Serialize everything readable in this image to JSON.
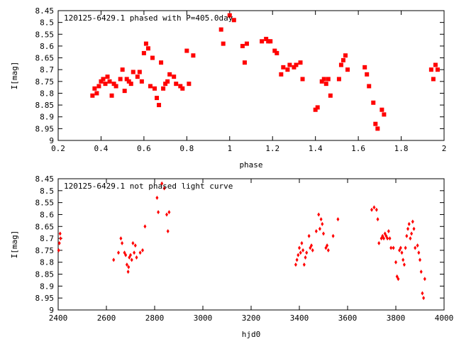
{
  "chart_data": [
    {
      "type": "scatter",
      "title": "120125-6429.1 phased with P=405.0day",
      "xlabel": "phase",
      "ylabel": "I[mag]",
      "xlim": [
        0.2,
        2.0
      ],
      "ylim": [
        8.45,
        9.0
      ],
      "y_inverted": true,
      "x_ticks": [
        "0.2",
        "0.4",
        "0.6",
        "0.8",
        "1",
        "1.2",
        "1.4",
        "1.6",
        "1.8",
        "2"
      ],
      "y_ticks": [
        "8.45",
        "8.5",
        "8.55",
        "8.6",
        "8.65",
        "8.7",
        "8.75",
        "8.8",
        "8.85",
        "8.9",
        "8.95",
        "9"
      ],
      "marker_color": "#ff0000",
      "series": [
        {
          "x": [
            0.36,
            0.37,
            0.38,
            0.39,
            0.4,
            0.41,
            0.42,
            0.43,
            0.44,
            0.45,
            0.46,
            0.47,
            0.49,
            0.5,
            0.51,
            0.52,
            0.53,
            0.54,
            0.55,
            0.57,
            0.58,
            0.59,
            0.6,
            0.61,
            0.62,
            0.63,
            0.64,
            0.65,
            0.66,
            0.67,
            0.68,
            0.69,
            0.7,
            0.71,
            0.72,
            0.74,
            0.75,
            0.77,
            0.78,
            0.8,
            0.81,
            0.83,
            0.96,
            0.97,
            1.0,
            1.02,
            1.06,
            1.07,
            1.08,
            1.15,
            1.17,
            1.18,
            1.19,
            1.21,
            1.22,
            1.24,
            1.25,
            1.27,
            1.28,
            1.3,
            1.31,
            1.33,
            1.34,
            1.4,
            1.41,
            1.43,
            1.44,
            1.45,
            1.46,
            1.47,
            1.51,
            1.52,
            1.53,
            1.54,
            1.55,
            1.63,
            1.64,
            1.65,
            1.67,
            1.68,
            1.69,
            1.71,
            1.72,
            1.94,
            1.95,
            1.96,
            1.97
          ],
          "y": [
            8.81,
            8.78,
            8.8,
            8.77,
            8.75,
            8.74,
            8.76,
            8.73,
            8.75,
            8.81,
            8.76,
            8.77,
            8.74,
            8.7,
            8.79,
            8.74,
            8.75,
            8.76,
            8.71,
            8.73,
            8.71,
            8.75,
            8.63,
            8.59,
            8.61,
            8.77,
            8.65,
            8.78,
            8.82,
            8.85,
            8.67,
            8.78,
            8.76,
            8.75,
            8.72,
            8.73,
            8.76,
            8.77,
            8.78,
            8.62,
            8.76,
            8.64,
            8.53,
            8.59,
            8.47,
            8.49,
            8.6,
            8.67,
            8.59,
            8.58,
            8.57,
            8.58,
            8.58,
            8.62,
            8.63,
            8.72,
            8.69,
            8.7,
            8.68,
            8.69,
            8.68,
            8.67,
            8.74,
            8.87,
            8.86,
            8.75,
            8.74,
            8.76,
            8.74,
            8.81,
            8.74,
            8.68,
            8.66,
            8.64,
            8.7,
            8.69,
            8.72,
            8.77,
            8.84,
            8.93,
            8.95,
            8.87,
            8.89,
            8.7,
            8.74,
            8.68,
            8.7
          ]
        }
      ]
    },
    {
      "type": "scatter",
      "title": "120125-6429.1 not phased light curve",
      "xlabel": "hjd0",
      "ylabel": "I[mag]",
      "xlim": [
        2400,
        4000
      ],
      "ylim": [
        8.45,
        9.0
      ],
      "y_inverted": true,
      "x_ticks": [
        "2400",
        "2600",
        "2800",
        "3000",
        "3200",
        "3400",
        "3600",
        "3800",
        "4000"
      ],
      "y_ticks": [
        "8.45",
        "8.5",
        "8.55",
        "8.6",
        "8.65",
        "8.7",
        "8.75",
        "8.8",
        "8.85",
        "8.9",
        "8.95",
        "9"
      ],
      "marker_color": "#ff0000",
      "series": [
        {
          "x": [
            2402,
            2405,
            2408,
            2410,
            2630,
            2650,
            2660,
            2665,
            2675,
            2680,
            2685,
            2690,
            2692,
            2695,
            2700,
            2705,
            2710,
            2715,
            2720,
            2725,
            2740,
            2750,
            2760,
            2810,
            2815,
            2830,
            2840,
            2850,
            2855,
            2860,
            3385,
            3390,
            3395,
            3400,
            3405,
            3410,
            3415,
            3420,
            3425,
            3430,
            3440,
            3445,
            3450,
            3455,
            3470,
            3480,
            3485,
            3490,
            3495,
            3500,
            3510,
            3515,
            3520,
            3540,
            3560,
            3700,
            3710,
            3720,
            3725,
            3730,
            3740,
            3745,
            3750,
            3755,
            3760,
            3765,
            3770,
            3775,
            3780,
            3790,
            3800,
            3805,
            3810,
            3815,
            3820,
            3825,
            3830,
            3835,
            3840,
            3845,
            3850,
            3855,
            3860,
            3865,
            3870,
            3875,
            3880,
            3890,
            3895,
            3900,
            3905,
            3910,
            3915,
            3920
          ],
          "y": [
            8.75,
            8.72,
            8.68,
            8.7,
            8.79,
            8.76,
            8.7,
            8.72,
            8.76,
            8.77,
            8.81,
            8.84,
            8.82,
            8.78,
            8.77,
            8.79,
            8.72,
            8.76,
            8.73,
            8.78,
            8.76,
            8.75,
            8.65,
            8.53,
            8.59,
            8.47,
            8.49,
            8.6,
            8.67,
            8.59,
            8.81,
            8.79,
            8.77,
            8.74,
            8.76,
            8.72,
            8.75,
            8.81,
            8.78,
            8.76,
            8.69,
            8.74,
            8.73,
            8.75,
            8.67,
            8.6,
            8.66,
            8.62,
            8.64,
            8.68,
            8.74,
            8.73,
            8.75,
            8.69,
            8.62,
            8.58,
            8.57,
            8.58,
            8.62,
            8.72,
            8.7,
            8.69,
            8.7,
            8.68,
            8.69,
            8.7,
            8.67,
            8.7,
            8.74,
            8.74,
            8.8,
            8.86,
            8.87,
            8.75,
            8.74,
            8.76,
            8.79,
            8.81,
            8.74,
            8.69,
            8.66,
            8.64,
            8.7,
            8.68,
            8.63,
            8.66,
            8.74,
            8.73,
            8.76,
            8.79,
            8.84,
            8.93,
            8.95,
            8.87
          ]
        }
      ]
    }
  ]
}
